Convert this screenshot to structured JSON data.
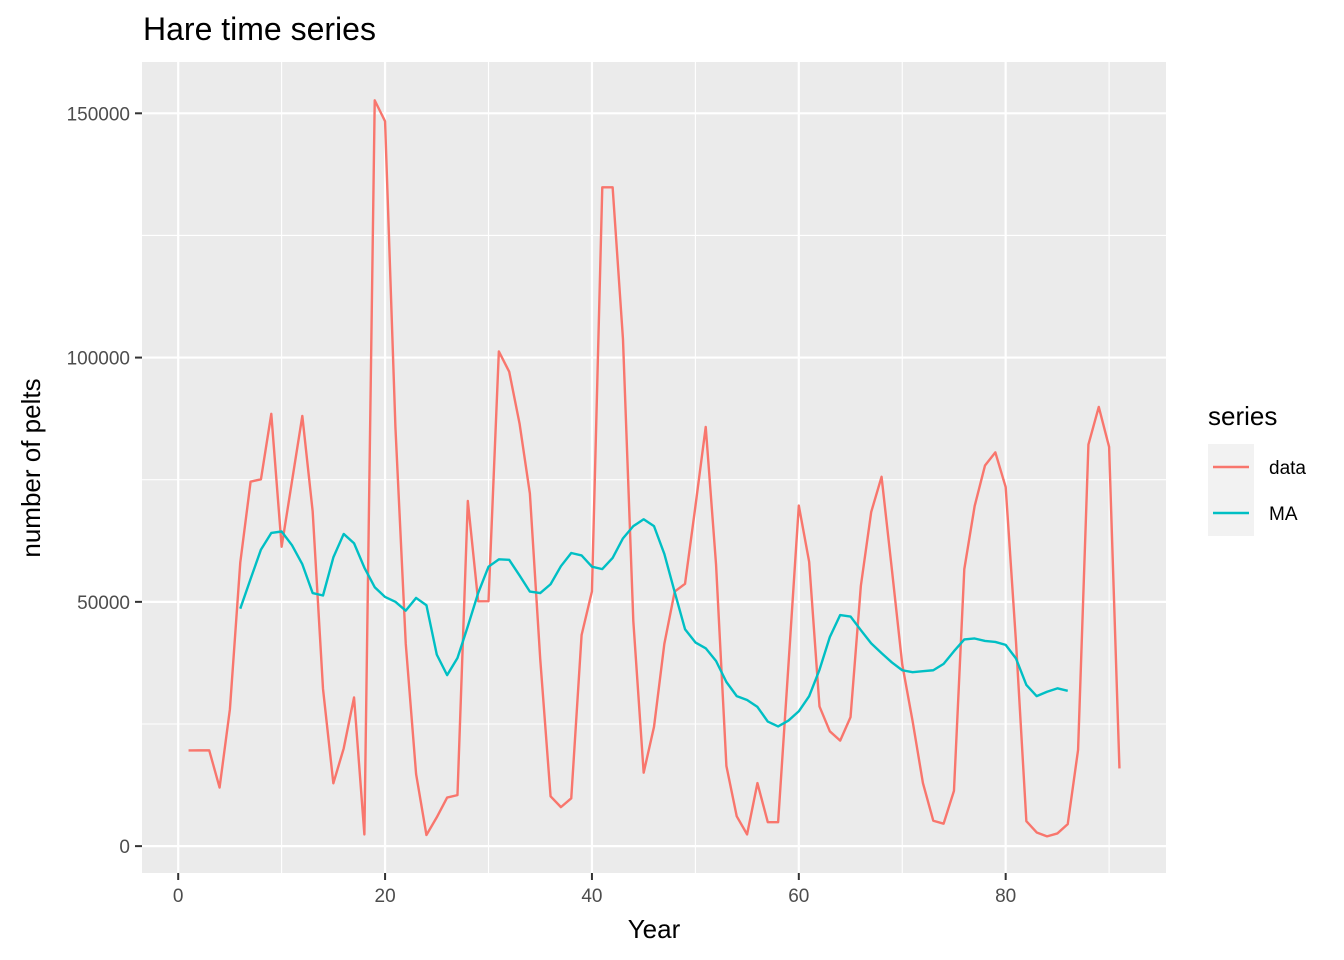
{
  "chart_data": {
    "type": "line",
    "title": "Hare time series",
    "xlabel": "Year",
    "ylabel": "number of pelts",
    "xlim": [
      -3.5,
      95.5
    ],
    "ylim": [
      -5500,
      160500
    ],
    "x_ticks": [
      0,
      20,
      40,
      60,
      80
    ],
    "y_ticks": [
      0,
      50000,
      100000,
      150000
    ],
    "x_tick_labels": [
      "0",
      "20",
      "40",
      "60",
      "80"
    ],
    "y_tick_labels": [
      "0",
      "50000",
      "100000",
      "150000"
    ],
    "grid": true,
    "legend": {
      "title": "series",
      "position": "right"
    },
    "series": [
      {
        "name": "data",
        "color": "#F8766D",
        "x": [
          1,
          2,
          3,
          4,
          5,
          6,
          7,
          8,
          9,
          10,
          11,
          12,
          13,
          14,
          15,
          16,
          17,
          18,
          19,
          20,
          21,
          22,
          23,
          24,
          25,
          26,
          27,
          28,
          29,
          30,
          31,
          32,
          33,
          34,
          35,
          36,
          37,
          38,
          39,
          40,
          41,
          42,
          43,
          44,
          45,
          46,
          47,
          48,
          49,
          50,
          51,
          52,
          53,
          54,
          55,
          56,
          57,
          58,
          59,
          60,
          61,
          62,
          63,
          64,
          65,
          66,
          67,
          68,
          69,
          70,
          71,
          72,
          73,
          74,
          75,
          76,
          77,
          78,
          79,
          80,
          81,
          82,
          83,
          84,
          85,
          86,
          87,
          88,
          89,
          90,
          91
        ],
        "y": [
          19580,
          19600,
          19610,
          11990,
          28040,
          58000,
          74600,
          75090,
          88480,
          61280,
          74670,
          88060,
          68510,
          32190,
          12860,
          20000,
          30430,
          2400,
          152650,
          148360,
          85810,
          41410,
          14750,
          2280,
          5910,
          9950,
          10440,
          70640,
          50120,
          50130,
          101250,
          97120,
          86510,
          72170,
          38320,
          10200,
          7980,
          9780,
          43220,
          52150,
          134850,
          134860,
          103790,
          46100,
          15030,
          24400,
          41400,
          52100,
          53700,
          69500,
          85800,
          57600,
          16400,
          6100,
          2400,
          12900,
          4900,
          4900,
          37100,
          69700,
          58200,
          28600,
          23500,
          21600,
          26400,
          53300,
          68400,
          75600,
          56600,
          37200,
          25600,
          12900,
          5200,
          4600,
          11300,
          56700,
          69600,
          77900,
          80600,
          73500,
          41700,
          5100,
          2800,
          2000,
          2600,
          4500,
          19700,
          82200,
          89900,
          81700,
          15900
        ]
      },
      {
        "name": "MA",
        "color": "#00BFC4",
        "x": [
          6,
          7,
          8,
          9,
          10,
          11,
          12,
          13,
          14,
          15,
          16,
          17,
          18,
          19,
          20,
          21,
          22,
          23,
          24,
          25,
          26,
          27,
          28,
          29,
          30,
          31,
          32,
          33,
          34,
          35,
          36,
          37,
          38,
          39,
          40,
          41,
          42,
          43,
          44,
          45,
          46,
          47,
          48,
          49,
          50,
          51,
          52,
          53,
          54,
          55,
          56,
          57,
          58,
          59,
          60,
          61,
          62,
          63,
          64,
          65,
          66,
          67,
          68,
          69,
          70,
          71,
          72,
          73,
          74,
          75,
          76,
          77,
          78,
          79,
          80,
          81,
          82,
          83,
          84,
          85,
          86
        ],
        "y": [
          48600,
          54700,
          60700,
          64100,
          64400,
          61600,
          57700,
          51800,
          51300,
          59100,
          63900,
          62000,
          57000,
          53000,
          51000,
          50000,
          48200,
          50800,
          49300,
          39200,
          35000,
          38500,
          45000,
          51800,
          57200,
          58700,
          58600,
          55400,
          52100,
          51800,
          53600,
          57300,
          60000,
          59500,
          57200,
          56700,
          59000,
          63000,
          65500,
          66900,
          65500,
          59800,
          52000,
          44400,
          41700,
          40500,
          37900,
          33600,
          30700,
          29900,
          28500,
          25500,
          24500,
          25700,
          27600,
          30700,
          36100,
          42800,
          47300,
          47000,
          44200,
          41500,
          39500,
          37600,
          36000,
          35600,
          35800,
          36000,
          37300,
          39900,
          42300,
          42500,
          42000,
          41800,
          41200,
          38400,
          33000,
          30700,
          31600,
          32300,
          31800
        ]
      }
    ]
  }
}
